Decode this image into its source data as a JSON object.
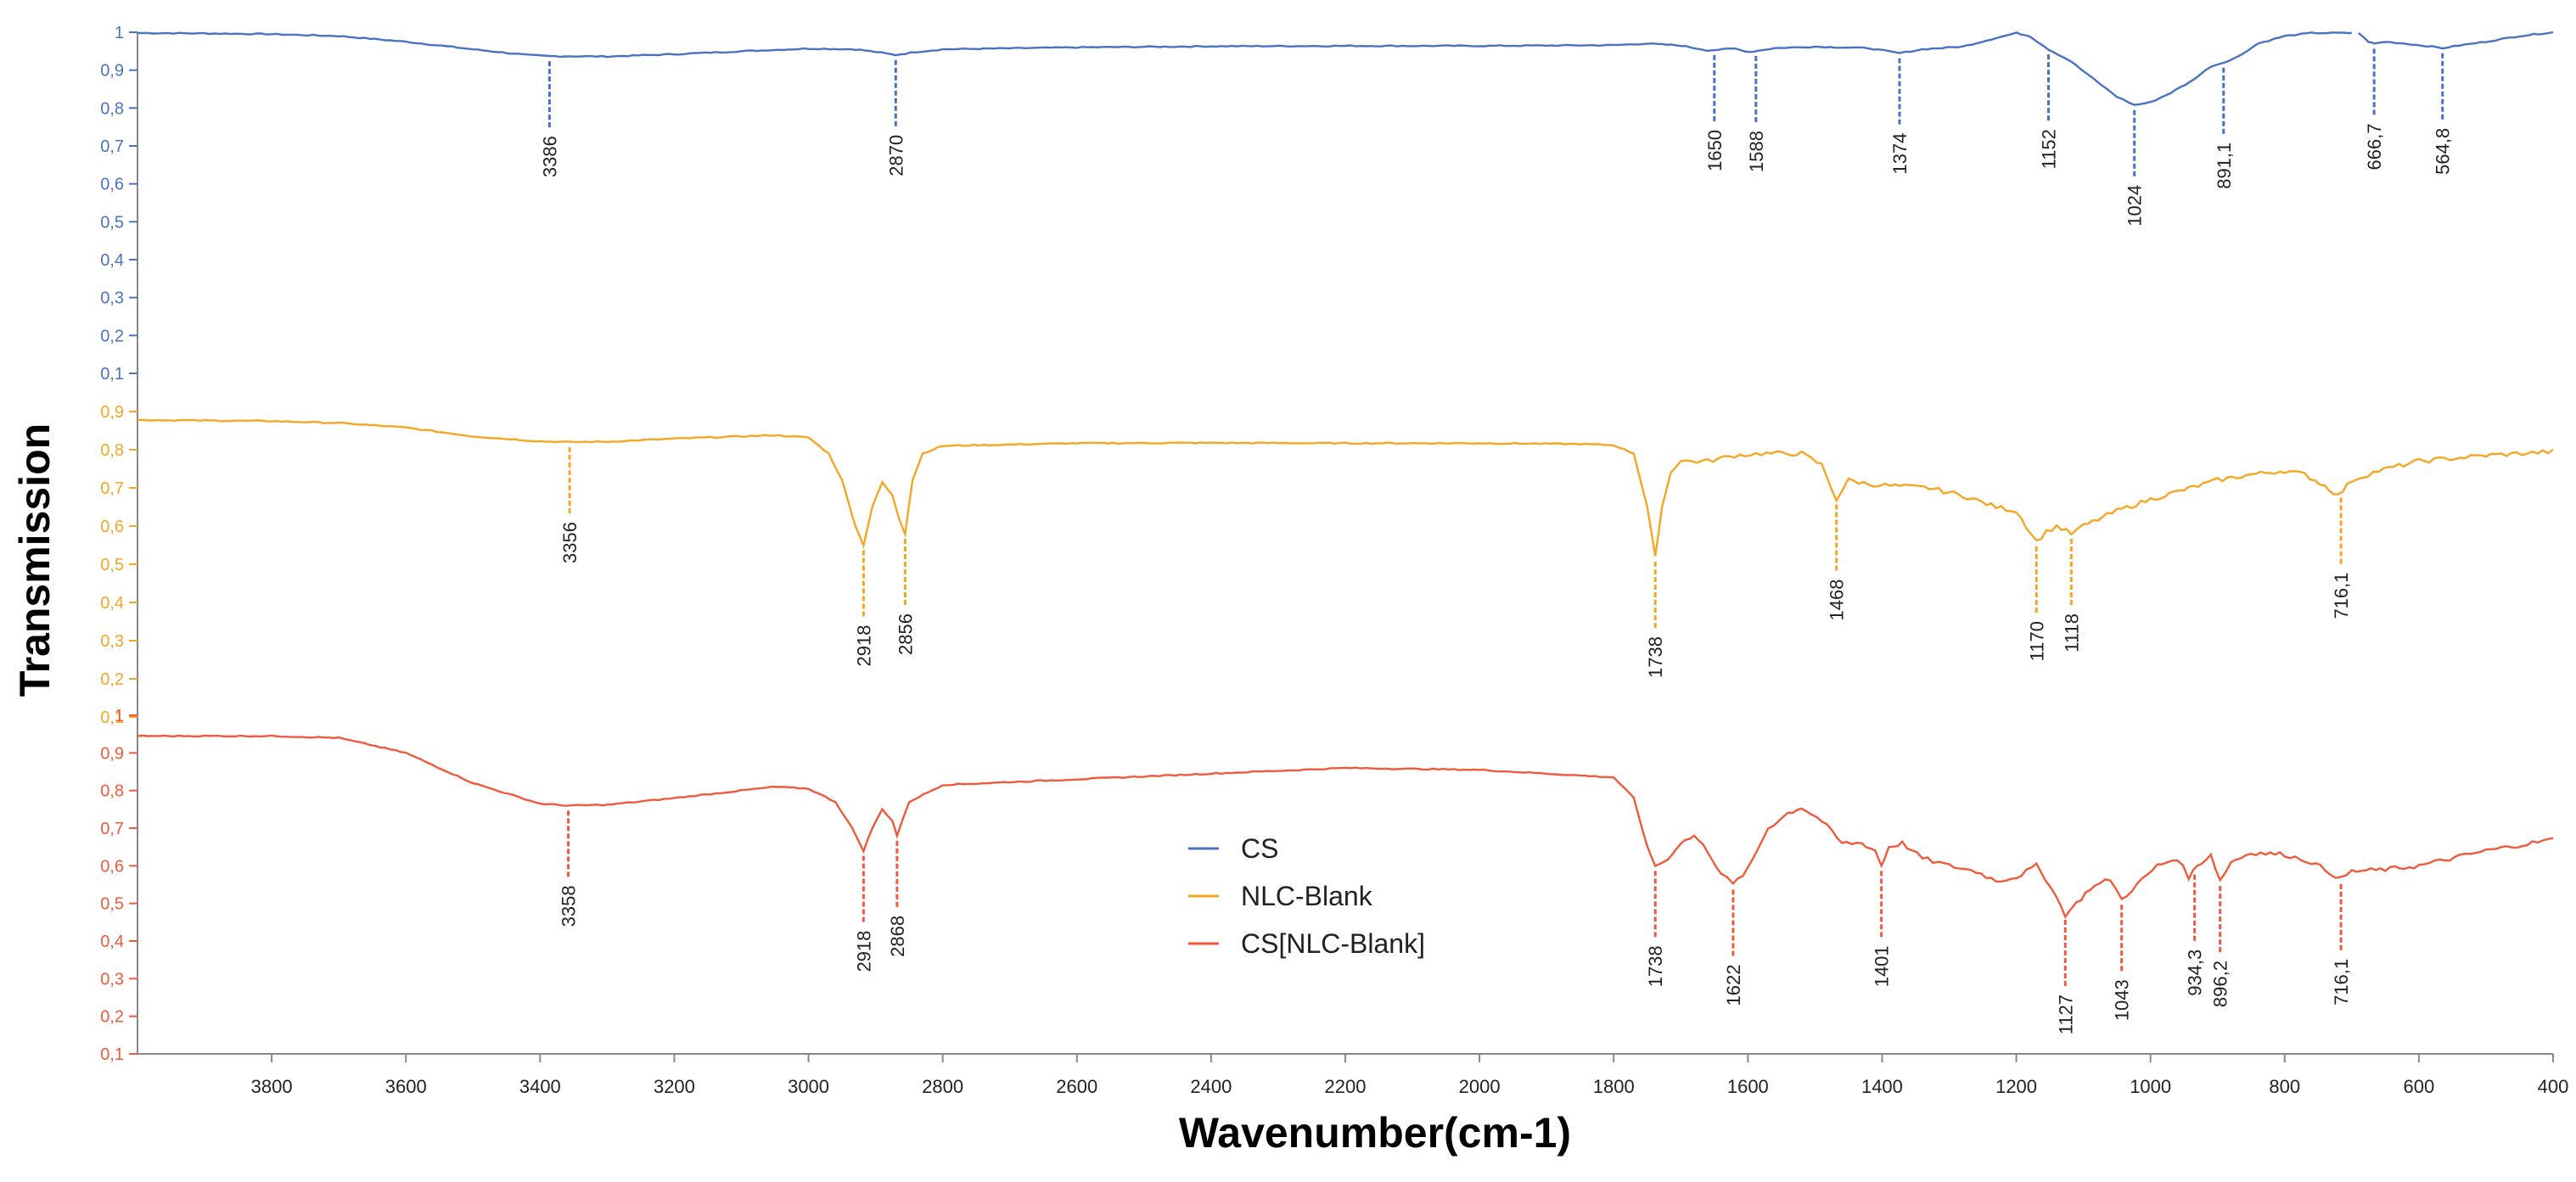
{
  "chart_data": {
    "type": "line",
    "title": "",
    "xlabel": "Wavenumber(cm-1)",
    "ylabel": "Transmission",
    "xlim": [
      4000,
      400
    ],
    "x_direction": "reversed",
    "x_ticks": [
      3800,
      3600,
      3400,
      3200,
      3000,
      2800,
      2600,
      2400,
      2200,
      2000,
      1800,
      1600,
      1400,
      1200,
      1000,
      800,
      600,
      400
    ],
    "y_tick_groups": [
      {
        "series": "CS",
        "color": "#4a72c4",
        "ticks": [
          "1",
          "0,9",
          "0,8",
          "0,7",
          "0,6",
          "0,5",
          "0,4",
          "0,3",
          "0,2",
          "0,1"
        ]
      },
      {
        "series": "NLC-Blank",
        "color": "#f5a623",
        "ticks": [
          "0,9",
          "0,8",
          "0,7",
          "0,6",
          "0,5",
          "0,4",
          "0,3",
          "0,2",
          "0,1"
        ]
      },
      {
        "series": "CS[NLC-Blank]",
        "color": "#ef5a3c",
        "ticks": [
          "1",
          "0,9",
          "0,8",
          "0,7",
          "0,6",
          "0,5",
          "0,4",
          "0,3",
          "0,2",
          "0,1"
        ]
      }
    ],
    "legend": {
      "position": "center-bottom",
      "entries": [
        "CS",
        "NLC-Blank",
        "CS[NLC-Blank]"
      ]
    },
    "series": [
      {
        "name": "CS",
        "color": "#4a72c4",
        "axis_range": [
          0.1,
          1.0
        ],
        "points": [
          [
            4000,
            0.998
          ],
          [
            3900,
            0.997
          ],
          [
            3800,
            0.995
          ],
          [
            3700,
            0.99
          ],
          [
            3600,
            0.975
          ],
          [
            3500,
            0.955
          ],
          [
            3420,
            0.94
          ],
          [
            3386,
            0.937
          ],
          [
            3300,
            0.936
          ],
          [
            3200,
            0.942
          ],
          [
            3100,
            0.95
          ],
          [
            3000,
            0.957
          ],
          [
            2930,
            0.955
          ],
          [
            2900,
            0.948
          ],
          [
            2870,
            0.94
          ],
          [
            2840,
            0.948
          ],
          [
            2800,
            0.955
          ],
          [
            2600,
            0.96
          ],
          [
            2400,
            0.963
          ],
          [
            2200,
            0.964
          ],
          [
            2000,
            0.964
          ],
          [
            1800,
            0.966
          ],
          [
            1750,
            0.97
          ],
          [
            1700,
            0.965
          ],
          [
            1660,
            0.952
          ],
          [
            1620,
            0.957
          ],
          [
            1598,
            0.948
          ],
          [
            1560,
            0.958
          ],
          [
            1500,
            0.962
          ],
          [
            1420,
            0.958
          ],
          [
            1374,
            0.945
          ],
          [
            1340,
            0.955
          ],
          [
            1280,
            0.962
          ],
          [
            1230,
            0.985
          ],
          [
            1200,
            0.998
          ],
          [
            1180,
            0.99
          ],
          [
            1152,
            0.955
          ],
          [
            1120,
            0.925
          ],
          [
            1080,
            0.87
          ],
          [
            1050,
            0.83
          ],
          [
            1024,
            0.808
          ],
          [
            1000,
            0.815
          ],
          [
            970,
            0.84
          ],
          [
            940,
            0.87
          ],
          [
            910,
            0.91
          ],
          [
            891.1,
            0.92
          ],
          [
            870,
            0.935
          ],
          [
            840,
            0.97
          ],
          [
            800,
            0.99
          ],
          [
            760,
            0.998
          ],
          [
            720,
            0.998
          ],
          [
            700,
            0.998
          ]
        ]
      },
      {
        "name": "CS",
        "color": "#4a72c4",
        "axis_range": [
          0.1,
          1.0
        ],
        "points": [
          [
            690,
            0.998
          ],
          [
            675,
            0.975
          ],
          [
            666.7,
            0.97
          ],
          [
            650,
            0.975
          ],
          [
            620,
            0.97
          ],
          [
            580,
            0.962
          ],
          [
            564.8,
            0.958
          ],
          [
            540,
            0.965
          ],
          [
            500,
            0.975
          ],
          [
            450,
            0.99
          ],
          [
            400,
            1.0
          ]
        ]
      },
      {
        "name": "NLC-Blank",
        "color": "#f5a623",
        "axis_range": [
          0.1,
          0.9
        ],
        "points": [
          [
            4000,
            0.878
          ],
          [
            3800,
            0.875
          ],
          [
            3700,
            0.87
          ],
          [
            3600,
            0.858
          ],
          [
            3500,
            0.835
          ],
          [
            3400,
            0.822
          ],
          [
            3356,
            0.82
          ],
          [
            3300,
            0.821
          ],
          [
            3200,
            0.829
          ],
          [
            3100,
            0.835
          ],
          [
            3050,
            0.838
          ],
          [
            3000,
            0.832
          ],
          [
            2970,
            0.79
          ],
          [
            2950,
            0.72
          ],
          [
            2930,
            0.6
          ],
          [
            2918,
            0.55
          ],
          [
            2905,
            0.65
          ],
          [
            2890,
            0.715
          ],
          [
            2875,
            0.68
          ],
          [
            2865,
            0.62
          ],
          [
            2856,
            0.58
          ],
          [
            2845,
            0.72
          ],
          [
            2830,
            0.79
          ],
          [
            2800,
            0.81
          ],
          [
            2600,
            0.817
          ],
          [
            2400,
            0.818
          ],
          [
            2200,
            0.817
          ],
          [
            2000,
            0.817
          ],
          [
            1850,
            0.815
          ],
          [
            1800,
            0.812
          ],
          [
            1770,
            0.79
          ],
          [
            1750,
            0.65
          ],
          [
            1738,
            0.52
          ],
          [
            1728,
            0.65
          ],
          [
            1715,
            0.74
          ],
          [
            1700,
            0.77
          ],
          [
            1660,
            0.77
          ],
          [
            1620,
            0.785
          ],
          [
            1580,
            0.79
          ],
          [
            1520,
            0.79
          ],
          [
            1490,
            0.76
          ],
          [
            1468,
            0.67
          ],
          [
            1450,
            0.72
          ],
          [
            1420,
            0.71
          ],
          [
            1380,
            0.705
          ],
          [
            1330,
            0.7
          ],
          [
            1280,
            0.68
          ],
          [
            1230,
            0.65
          ],
          [
            1200,
            0.64
          ],
          [
            1185,
            0.6
          ],
          [
            1170,
            0.56
          ],
          [
            1155,
            0.585
          ],
          [
            1140,
            0.6
          ],
          [
            1118,
            0.58
          ],
          [
            1100,
            0.6
          ],
          [
            1050,
            0.64
          ],
          [
            1000,
            0.67
          ],
          [
            950,
            0.695
          ],
          [
            900,
            0.72
          ],
          [
            850,
            0.735
          ],
          [
            800,
            0.745
          ],
          [
            770,
            0.735
          ],
          [
            740,
            0.705
          ],
          [
            720,
            0.68
          ],
          [
            700,
            0.72
          ],
          [
            660,
            0.745
          ],
          [
            600,
            0.77
          ],
          [
            500,
            0.785
          ],
          [
            400,
            0.795
          ]
        ]
      },
      {
        "name": "CS[NLC-Blank]",
        "color": "#ef5a3c",
        "axis_range": [
          0.1,
          1.0
        ],
        "points": [
          [
            4000,
            0.945
          ],
          [
            3800,
            0.945
          ],
          [
            3700,
            0.94
          ],
          [
            3600,
            0.9
          ],
          [
            3500,
            0.82
          ],
          [
            3400,
            0.765
          ],
          [
            3358,
            0.76
          ],
          [
            3300,
            0.762
          ],
          [
            3200,
            0.78
          ],
          [
            3100,
            0.8
          ],
          [
            3050,
            0.81
          ],
          [
            3000,
            0.805
          ],
          [
            2960,
            0.77
          ],
          [
            2935,
            0.7
          ],
          [
            2918,
            0.64
          ],
          [
            2905,
            0.7
          ],
          [
            2890,
            0.75
          ],
          [
            2875,
            0.72
          ],
          [
            2868,
            0.68
          ],
          [
            2850,
            0.77
          ],
          [
            2800,
            0.815
          ],
          [
            2600,
            0.83
          ],
          [
            2400,
            0.845
          ],
          [
            2200,
            0.86
          ],
          [
            2000,
            0.855
          ],
          [
            1850,
            0.84
          ],
          [
            1800,
            0.835
          ],
          [
            1770,
            0.78
          ],
          [
            1750,
            0.65
          ],
          [
            1738,
            0.6
          ],
          [
            1720,
            0.615
          ],
          [
            1700,
            0.66
          ],
          [
            1680,
            0.68
          ],
          [
            1660,
            0.64
          ],
          [
            1640,
            0.58
          ],
          [
            1622,
            0.55
          ],
          [
            1600,
            0.59
          ],
          [
            1570,
            0.7
          ],
          [
            1540,
            0.74
          ],
          [
            1520,
            0.755
          ],
          [
            1490,
            0.72
          ],
          [
            1460,
            0.66
          ],
          [
            1430,
            0.66
          ],
          [
            1410,
            0.64
          ],
          [
            1401,
            0.6
          ],
          [
            1390,
            0.65
          ],
          [
            1370,
            0.66
          ],
          [
            1340,
            0.62
          ],
          [
            1300,
            0.6
          ],
          [
            1260,
            0.585
          ],
          [
            1230,
            0.56
          ],
          [
            1200,
            0.57
          ],
          [
            1170,
            0.6
          ],
          [
            1150,
            0.55
          ],
          [
            1127,
            0.47
          ],
          [
            1110,
            0.5
          ],
          [
            1090,
            0.54
          ],
          [
            1060,
            0.565
          ],
          [
            1043,
            0.51
          ],
          [
            1020,
            0.55
          ],
          [
            990,
            0.6
          ],
          [
            960,
            0.62
          ],
          [
            943,
            0.57
          ],
          [
            930,
            0.6
          ],
          [
            910,
            0.63
          ],
          [
            896.2,
            0.56
          ],
          [
            880,
            0.61
          ],
          [
            850,
            0.635
          ],
          [
            800,
            0.63
          ],
          [
            760,
            0.61
          ],
          [
            740,
            0.59
          ],
          [
            716.1,
            0.565
          ],
          [
            700,
            0.585
          ],
          [
            650,
            0.59
          ],
          [
            600,
            0.6
          ],
          [
            500,
            0.64
          ],
          [
            400,
            0.67
          ]
        ]
      }
    ],
    "annotations": [
      {
        "series": "CS",
        "label": "3386",
        "x": 3386
      },
      {
        "series": "CS",
        "label": "2870",
        "x": 2870
      },
      {
        "series": "CS",
        "label": "1650",
        "x": 1650
      },
      {
        "series": "CS",
        "label": "1588",
        "x": 1588
      },
      {
        "series": "CS",
        "label": "1374",
        "x": 1374
      },
      {
        "series": "CS",
        "label": "1152",
        "x": 1152
      },
      {
        "series": "CS",
        "label": "1024",
        "x": 1024
      },
      {
        "series": "CS",
        "label": "891,1",
        "x": 891.1
      },
      {
        "series": "CS",
        "label": "666,7",
        "x": 666.7
      },
      {
        "series": "CS",
        "label": "564,8",
        "x": 564.8
      },
      {
        "series": "NLC-Blank",
        "label": "3356",
        "x": 3356
      },
      {
        "series": "NLC-Blank",
        "label": "2918",
        "x": 2918
      },
      {
        "series": "NLC-Blank",
        "label": "2856",
        "x": 2856
      },
      {
        "series": "NLC-Blank",
        "label": "1738",
        "x": 1738
      },
      {
        "series": "NLC-Blank",
        "label": "1468",
        "x": 1468
      },
      {
        "series": "NLC-Blank",
        "label": "1170",
        "x": 1170
      },
      {
        "series": "NLC-Blank",
        "label": "1118",
        "x": 1118
      },
      {
        "series": "NLC-Blank",
        "label": "716,1",
        "x": 716.1
      },
      {
        "series": "CS[NLC-Blank]",
        "label": "3358",
        "x": 3358
      },
      {
        "series": "CS[NLC-Blank]",
        "label": "2918",
        "x": 2918
      },
      {
        "series": "CS[NLC-Blank]",
        "label": "2868",
        "x": 2868
      },
      {
        "series": "CS[NLC-Blank]",
        "label": "1738",
        "x": 1738
      },
      {
        "series": "CS[NLC-Blank]",
        "label": "1622",
        "x": 1622
      },
      {
        "series": "CS[NLC-Blank]",
        "label": "1401",
        "x": 1401
      },
      {
        "series": "CS[NLC-Blank]",
        "label": "1127",
        "x": 1127
      },
      {
        "series": "CS[NLC-Blank]",
        "label": "1043",
        "x": 1043
      },
      {
        "series": "CS[NLC-Blank]",
        "label": "934,3",
        "x": 934.3
      },
      {
        "series": "CS[NLC-Blank]",
        "label": "896,2",
        "x": 896.2
      },
      {
        "series": "CS[NLC-Blank]",
        "label": "716,1",
        "x": 716.1
      }
    ]
  }
}
